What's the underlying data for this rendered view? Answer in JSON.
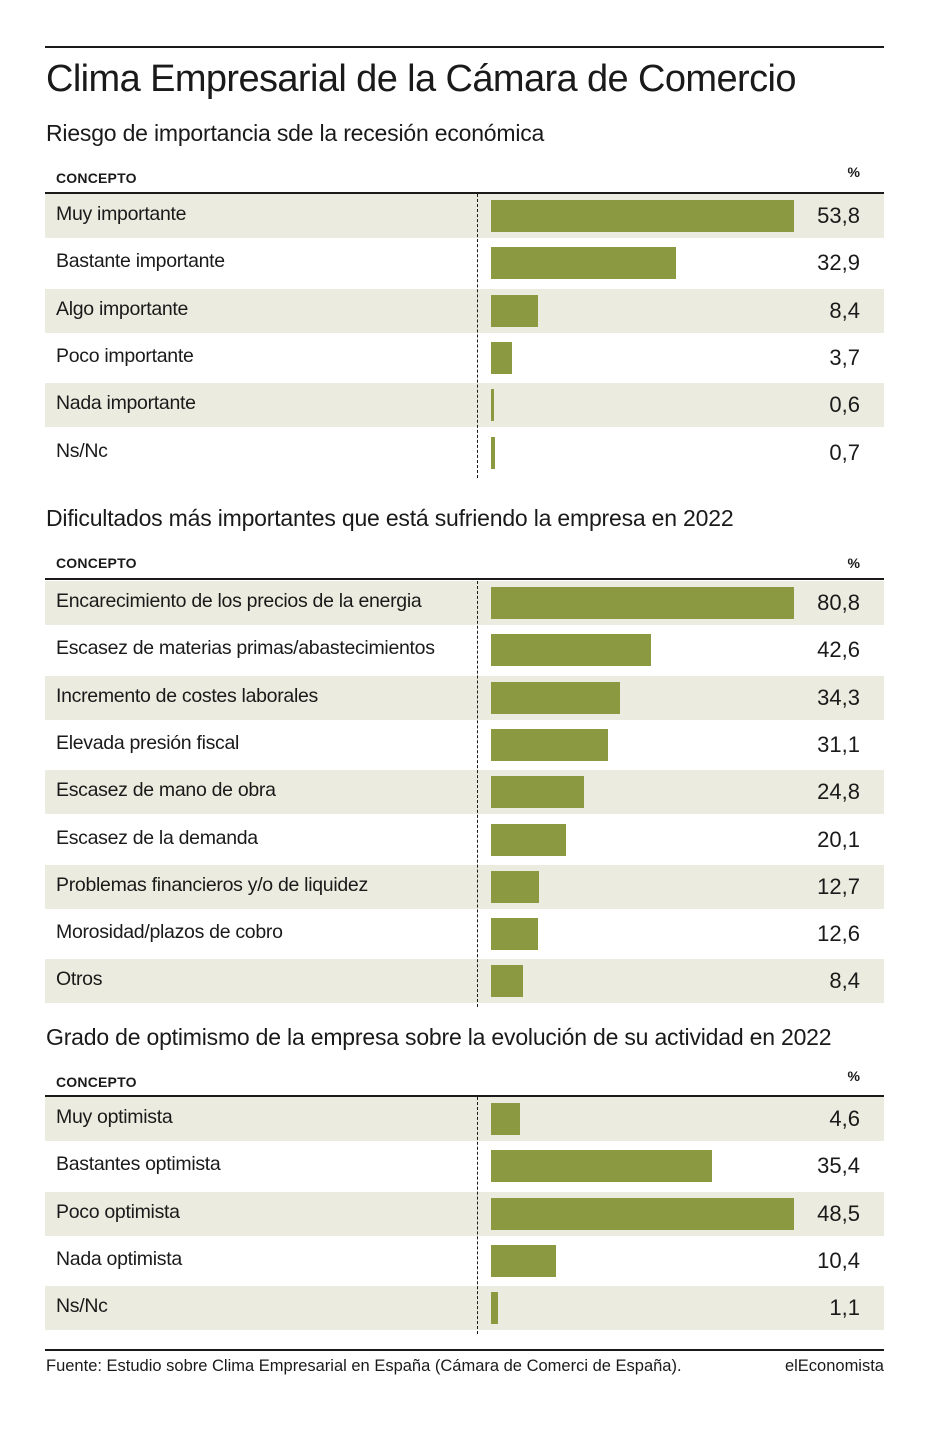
{
  "title": "Clima Empresarial de la Cámara de Comercio",
  "source": "Fuente: Estudio sobre Clima Empresarial en España (Cámara de Comerci de España).",
  "brand": "elEconomista",
  "colors": {
    "bar": "#8b9a41",
    "row_shade": "#ecebdf",
    "text": "#1a1a1a"
  },
  "chart_data": [
    {
      "type": "bar",
      "title": "Riesgo de importancia sde la recesión económica",
      "column_label": "CONCEPTO",
      "unit_label": "%",
      "categories": [
        "Muy importante",
        "Bastante importante",
        "Algo importante",
        "Poco importante",
        "Nada importante",
        "Ns/Nc"
      ],
      "values": [
        53.8,
        32.9,
        8.4,
        3.7,
        0.6,
        0.7
      ],
      "value_labels": [
        "53,8",
        "32,9",
        "8,4",
        "3,7",
        "0,6",
        "0,7"
      ]
    },
    {
      "type": "bar",
      "title": "Dificultados más importantes que está sufriendo la empresa en 2022",
      "column_label": "CONCEPTO",
      "unit_label": "%",
      "categories": [
        "Encarecimiento de los precios de la energia",
        "Escasez de materias primas/abastecimientos",
        "Incremento de costes laborales",
        "Elevada presión fiscal",
        "Escasez de mano de obra",
        "Escasez de la demanda",
        "Problemas financieros y/o de liquidez",
        "Morosidad/plazos de cobro",
        "Otros"
      ],
      "values": [
        80.8,
        42.6,
        34.3,
        31.1,
        24.8,
        20.1,
        12.7,
        12.6,
        8.4
      ],
      "value_labels": [
        "80,8",
        "42,6",
        "34,3",
        "31,1",
        "24,8",
        "20,1",
        "12,7",
        "12,6",
        "8,4"
      ]
    },
    {
      "type": "bar",
      "title": "Grado de optimismo de la empresa sobre la evolución de su actividad en 2022",
      "column_label": "CONCEPTO",
      "unit_label": "%",
      "categories": [
        "Muy optimista",
        "Bastantes optimista",
        "Poco optimista",
        "Nada optimista",
        "Ns/Nc"
      ],
      "values": [
        4.6,
        35.4,
        48.5,
        10.4,
        1.1
      ],
      "value_labels": [
        "4,6",
        "35,4",
        "48,5",
        "10,4",
        "1,1"
      ]
    }
  ]
}
